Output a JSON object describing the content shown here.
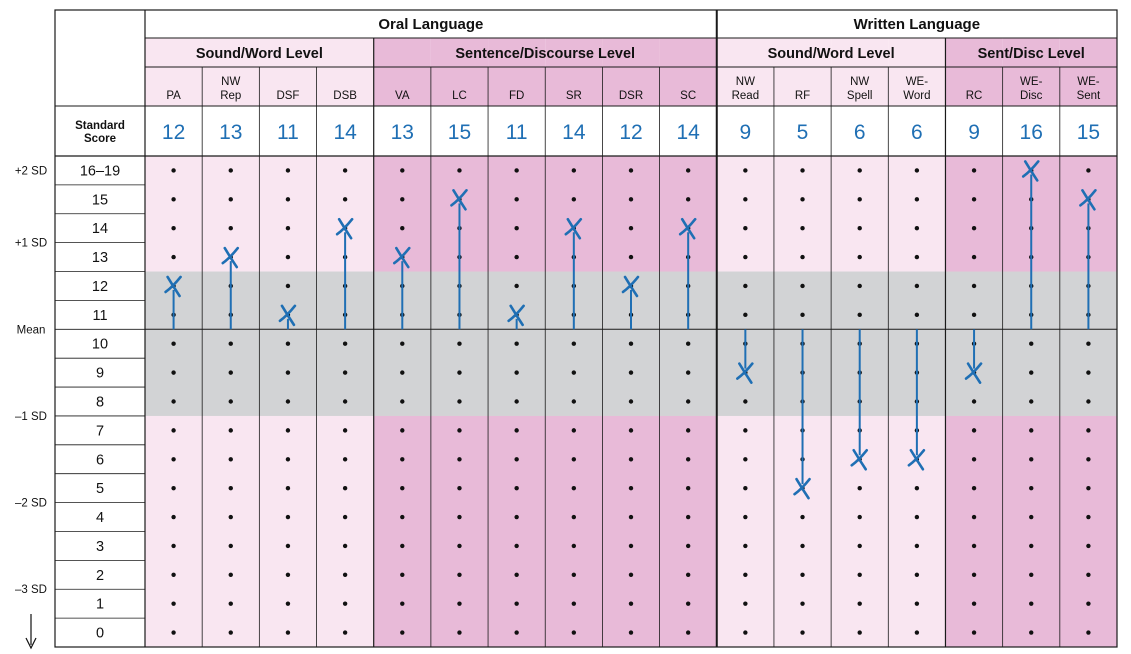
{
  "chart_data": {
    "type": "profile",
    "title": "",
    "groups": [
      {
        "name": "Oral Language",
        "subgroups": [
          {
            "name": "Sound/Word Level",
            "columns": [
              "PA",
              "NW|Rep",
              "DSF",
              "DSB"
            ]
          },
          {
            "name": "Sentence/Discourse Level",
            "columns": [
              "VA",
              "LC",
              "FD",
              "SR",
              "DSR",
              "SC"
            ]
          }
        ]
      },
      {
        "name": "Written Language",
        "subgroups": [
          {
            "name": "Sound/Word Level",
            "columns": [
              "NW|Read",
              "RF",
              "NW|Spell",
              "WE-|Word"
            ]
          },
          {
            "name": "Sent/Disc Level",
            "columns": [
              "RC",
              "WE-|Disc",
              "WE-|Sent"
            ]
          }
        ]
      }
    ],
    "score_header": "Standard|Score",
    "scores": [
      12,
      13,
      11,
      14,
      13,
      15,
      11,
      14,
      12,
      14,
      9,
      5,
      6,
      6,
      9,
      16,
      15
    ],
    "rows": [
      "16–19",
      "15",
      "14",
      "13",
      "12",
      "11",
      "10",
      "9",
      "8",
      "7",
      "6",
      "5",
      "4",
      "3",
      "2",
      "1",
      "0"
    ],
    "row_values": [
      16,
      15,
      14,
      13,
      12,
      11,
      10,
      9,
      8,
      7,
      6,
      5,
      4,
      3,
      2,
      1,
      0
    ],
    "sd_labels": [
      {
        "text": "+2 SD",
        "value": 16
      },
      {
        "text": "+1 SD",
        "value": 13
      },
      {
        "text": "Mean",
        "value": 10
      },
      {
        "text": "–1 SD",
        "value": 7
      },
      {
        "text": "–2 SD",
        "value": 4
      },
      {
        "text": "–3 SD",
        "value": 1
      }
    ],
    "mean": 10,
    "average_band": [
      8,
      12
    ],
    "colors": {
      "light_pink": "#f9e6f1",
      "dark_pink": "#e8bad8",
      "gray_band": "#d2d3d5",
      "mark": "#1f6fb4",
      "grid": "#1a1a1a"
    }
  }
}
